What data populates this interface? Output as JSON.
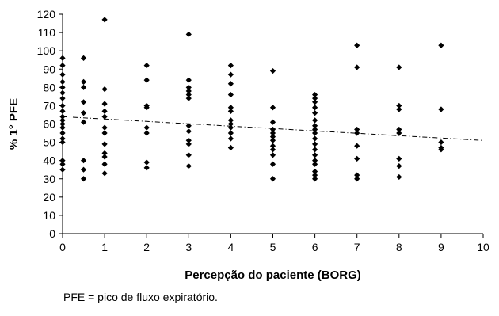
{
  "chart_data": {
    "type": "scatter",
    "xlabel": "Percepção do paciente (BORG)",
    "ylabel": "% 1° PFE",
    "xlim": [
      0,
      10
    ],
    "ylim": [
      0,
      120
    ],
    "x_ticks": [
      "0",
      "1",
      "2",
      "3",
      "4",
      "5",
      "6",
      "7",
      "8",
      "9",
      "10"
    ],
    "y_ticks": [
      "0",
      "10",
      "20",
      "30",
      "40",
      "50",
      "60",
      "70",
      "80",
      "90",
      "100",
      "110",
      "120"
    ],
    "grid": false,
    "marker": "diamond",
    "marker_color": "#000000",
    "trendline": {
      "style": "dash-dot",
      "x": [
        0,
        10
      ],
      "y": [
        64,
        51
      ]
    },
    "points": [
      [
        0,
        96
      ],
      [
        0,
        92
      ],
      [
        0,
        87
      ],
      [
        0,
        83
      ],
      [
        0,
        80
      ],
      [
        0,
        77
      ],
      [
        0,
        74
      ],
      [
        0,
        70
      ],
      [
        0,
        67
      ],
      [
        0,
        64
      ],
      [
        0,
        62
      ],
      [
        0,
        60
      ],
      [
        0,
        58
      ],
      [
        0,
        55
      ],
      [
        0,
        52
      ],
      [
        0,
        50
      ],
      [
        0,
        40
      ],
      [
        0,
        38
      ],
      [
        0,
        35
      ],
      [
        0.5,
        96
      ],
      [
        0.5,
        83
      ],
      [
        0.5,
        80
      ],
      [
        0.5,
        72
      ],
      [
        0.5,
        66
      ],
      [
        0.5,
        61
      ],
      [
        0.5,
        40
      ],
      [
        0.5,
        35
      ],
      [
        0.5,
        30
      ],
      [
        1,
        117
      ],
      [
        1,
        79
      ],
      [
        1,
        71
      ],
      [
        1,
        67
      ],
      [
        1,
        64
      ],
      [
        1,
        58
      ],
      [
        1,
        55
      ],
      [
        1,
        49
      ],
      [
        1,
        44
      ],
      [
        1,
        42
      ],
      [
        1,
        38
      ],
      [
        1,
        33
      ],
      [
        2,
        92
      ],
      [
        2,
        84
      ],
      [
        2,
        70
      ],
      [
        2,
        69
      ],
      [
        2,
        58
      ],
      [
        2,
        55
      ],
      [
        2,
        39
      ],
      [
        2,
        36
      ],
      [
        3,
        109
      ],
      [
        3,
        84
      ],
      [
        3,
        80
      ],
      [
        3,
        78
      ],
      [
        3,
        76
      ],
      [
        3,
        74
      ],
      [
        3,
        59
      ],
      [
        3,
        56
      ],
      [
        3,
        51
      ],
      [
        3,
        49
      ],
      [
        3,
        43
      ],
      [
        3,
        37
      ],
      [
        4,
        92
      ],
      [
        4,
        87
      ],
      [
        4,
        82
      ],
      [
        4,
        76
      ],
      [
        4,
        69
      ],
      [
        4,
        67
      ],
      [
        4,
        62
      ],
      [
        4,
        60
      ],
      [
        4,
        58
      ],
      [
        4,
        55
      ],
      [
        4,
        52
      ],
      [
        4,
        47
      ],
      [
        5,
        89
      ],
      [
        5,
        69
      ],
      [
        5,
        61
      ],
      [
        5,
        57
      ],
      [
        5,
        55
      ],
      [
        5,
        53
      ],
      [
        5,
        51
      ],
      [
        5,
        48
      ],
      [
        5,
        46
      ],
      [
        5,
        43
      ],
      [
        5,
        38
      ],
      [
        5,
        30
      ],
      [
        6,
        76
      ],
      [
        6,
        74
      ],
      [
        6,
        72
      ],
      [
        6,
        69
      ],
      [
        6,
        66
      ],
      [
        6,
        62
      ],
      [
        6,
        59
      ],
      [
        6,
        57
      ],
      [
        6,
        55
      ],
      [
        6,
        52
      ],
      [
        6,
        49
      ],
      [
        6,
        46
      ],
      [
        6,
        43
      ],
      [
        6,
        40
      ],
      [
        6,
        38
      ],
      [
        6,
        34
      ],
      [
        6,
        32
      ],
      [
        6,
        30
      ],
      [
        7,
        103
      ],
      [
        7,
        91
      ],
      [
        7,
        57
      ],
      [
        7,
        55
      ],
      [
        7,
        48
      ],
      [
        7,
        41
      ],
      [
        7,
        32
      ],
      [
        7,
        30
      ],
      [
        8,
        91
      ],
      [
        8,
        70
      ],
      [
        8,
        68
      ],
      [
        8,
        57
      ],
      [
        8,
        55
      ],
      [
        8,
        41
      ],
      [
        8,
        37
      ],
      [
        8,
        31
      ],
      [
        9,
        103
      ],
      [
        9,
        68
      ],
      [
        9,
        50
      ],
      [
        9,
        47
      ],
      [
        9,
        46
      ]
    ]
  },
  "caption": "PFE = pico de fluxo expiratório."
}
